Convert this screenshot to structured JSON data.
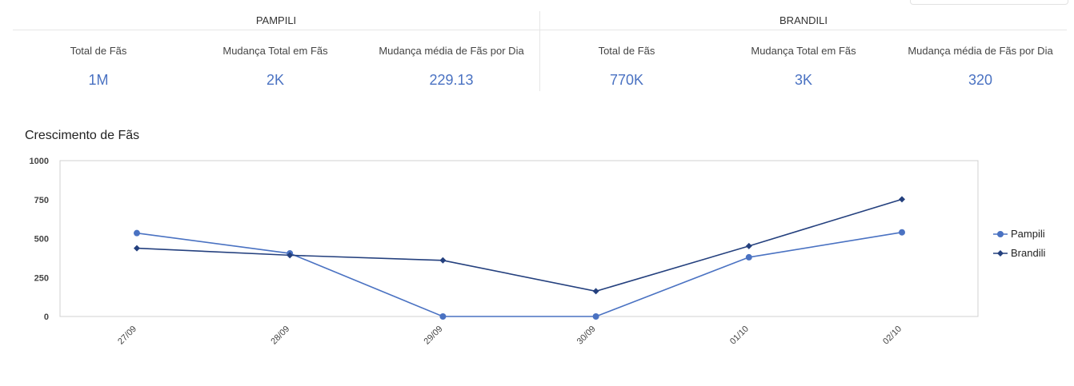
{
  "groups": [
    {
      "name": "PAMPILI",
      "metrics": [
        {
          "label": "Total de Fãs",
          "value": "1M"
        },
        {
          "label": "Mudança Total em Fãs",
          "value": "2K"
        },
        {
          "label": "Mudança média de Fãs por Dia",
          "value": "229.13"
        }
      ]
    },
    {
      "name": "BRANDILI",
      "metrics": [
        {
          "label": "Total de Fãs",
          "value": "770K"
        },
        {
          "label": "Mudança Total em Fãs",
          "value": "3K"
        },
        {
          "label": "Mudança média de Fãs por Dia",
          "value": "320"
        }
      ]
    }
  ],
  "chart_data": {
    "type": "line",
    "title": "Crescimento de Fãs",
    "categories": [
      "27/09",
      "28/09",
      "29/09",
      "30/09",
      "01/10",
      "02/10"
    ],
    "series": [
      {
        "name": "Pampili",
        "values": [
          535,
          405,
          0,
          0,
          380,
          540
        ],
        "color": "#4a72c2",
        "marker": "circle"
      },
      {
        "name": "Brandili",
        "values": [
          438,
          393,
          360,
          162,
          452,
          752
        ],
        "color": "#24407e",
        "marker": "diamond"
      }
    ],
    "ylim": [
      0,
      1000
    ],
    "yticks": [
      0,
      250,
      500,
      750,
      1000
    ],
    "legend": "right",
    "grid": false
  }
}
